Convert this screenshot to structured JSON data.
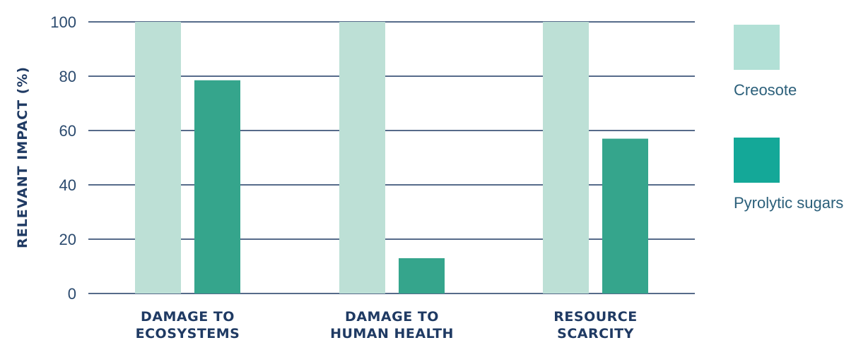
{
  "chart_data": {
    "type": "bar",
    "categories": [
      [
        "DAMAGE TO",
        "ECOSYSTEMS"
      ],
      [
        "DAMAGE TO",
        "HUMAN HEALTH"
      ],
      [
        "RESOURCE",
        "SCARCITY"
      ]
    ],
    "series": [
      {
        "name": "Creosote",
        "values": [
          100,
          100,
          100
        ],
        "color": "#bde0d6"
      },
      {
        "name": "Pyrolytic sugars",
        "values": [
          78.5,
          13,
          57
        ],
        "color": "#35a58c"
      }
    ],
    "legend_swatch_colors": [
      "#b2e0d6",
      "#14a898"
    ],
    "ylabel": "RELEVANT IMPACT (%)",
    "ylim": [
      0,
      100
    ],
    "yticks": [
      "0",
      "20",
      "40",
      "60",
      "80",
      "100"
    ],
    "ytick_values": [
      0,
      20,
      40,
      60,
      80,
      100
    ],
    "grid": true,
    "legend_position": "right",
    "gridline_color": "#1f3a63"
  }
}
